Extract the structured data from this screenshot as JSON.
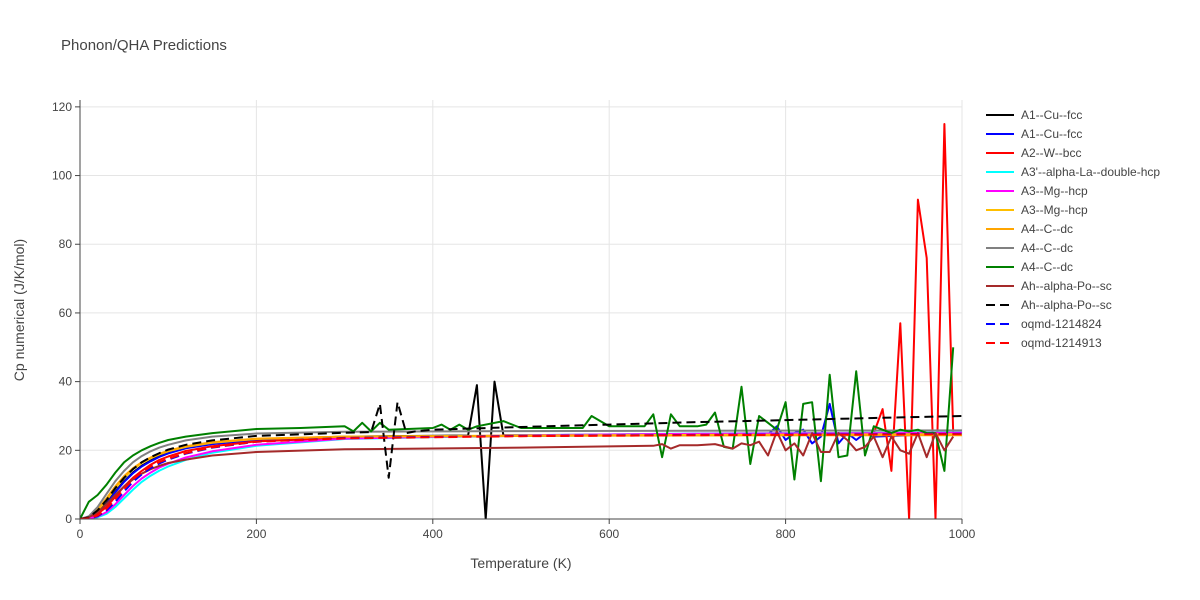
{
  "chart_data": {
    "type": "line",
    "title": "Phonon/QHA Predictions",
    "xlabel": "Temperature (K)",
    "ylabel": "Cp numerical (J/K/mol)",
    "xlim": [
      0,
      1000
    ],
    "ylim": [
      0,
      122
    ],
    "xticks": [
      0,
      200,
      400,
      600,
      800,
      1000
    ],
    "yticks": [
      0,
      20,
      40,
      60,
      80,
      100,
      120
    ],
    "grid": true,
    "legend_position": "right",
    "series": [
      {
        "name": "A1--Cu--fcc",
        "color": "#000000",
        "dash": "solid",
        "x": [
          0,
          10,
          20,
          30,
          40,
          50,
          60,
          70,
          80,
          90,
          100,
          120,
          150,
          200,
          300,
          440,
          450,
          460,
          470,
          480,
          490,
          1000
        ],
        "y": [
          0,
          0.5,
          2,
          4.5,
          8,
          11,
          13.5,
          15.5,
          17,
          18.3,
          19.3,
          20.8,
          22,
          23.2,
          24,
          24.3,
          39,
          0,
          40,
          24.4,
          24.4,
          25
        ]
      },
      {
        "name": "A1--Cu--fcc",
        "color": "#0000ff",
        "dash": "solid",
        "x": [
          0,
          10,
          20,
          30,
          40,
          50,
          60,
          70,
          80,
          90,
          100,
          120,
          150,
          200,
          300,
          500,
          700,
          780,
          790,
          800,
          810,
          820,
          830,
          840,
          850,
          860,
          870,
          880,
          890,
          900,
          1000
        ],
        "y": [
          0,
          0.4,
          1.8,
          4.3,
          7.8,
          10.8,
          13.3,
          15.3,
          16.8,
          18.1,
          19.1,
          20.6,
          21.8,
          23,
          23.8,
          24.2,
          24.5,
          24.6,
          27,
          23,
          25,
          26,
          22,
          24,
          33.5,
          22,
          25,
          23,
          25,
          24,
          25
        ]
      },
      {
        "name": "A2--W--bcc",
        "color": "#ff0000",
        "dash": "solid",
        "x": [
          0,
          10,
          20,
          30,
          40,
          50,
          60,
          70,
          80,
          90,
          100,
          120,
          150,
          200,
          300,
          500,
          700,
          900,
          910,
          920,
          930,
          940,
          950,
          960,
          970,
          980,
          990
        ],
        "y": [
          0,
          0.3,
          1.5,
          3.5,
          6.5,
          9.5,
          12,
          14,
          15.8,
          17.2,
          18.2,
          19.8,
          21.2,
          22.6,
          23.6,
          24.2,
          24.6,
          25,
          32,
          14,
          57,
          0,
          93,
          76,
          0,
          115,
          25
        ]
      },
      {
        "name": "A3'--alpha-La--double-hcp",
        "color": "#00ffff",
        "dash": "solid",
        "x": [
          0,
          10,
          20,
          30,
          40,
          50,
          60,
          70,
          80,
          90,
          100,
          120,
          150,
          200,
          300,
          500,
          700,
          1000
        ],
        "y": [
          0,
          0.1,
          0.5,
          1.5,
          3.5,
          6,
          8.5,
          10.8,
          12.6,
          14.1,
          15.3,
          17.2,
          19.3,
          21.3,
          23.3,
          24.4,
          24.9,
          25.2
        ]
      },
      {
        "name": "A3--Mg--hcp",
        "color": "#ff00ff",
        "dash": "solid",
        "x": [
          0,
          10,
          20,
          30,
          40,
          50,
          60,
          70,
          80,
          90,
          100,
          120,
          150,
          200,
          300,
          500,
          700,
          1000
        ],
        "y": [
          0,
          0.2,
          0.7,
          2,
          4.3,
          7,
          9.6,
          11.8,
          13.5,
          15,
          16.1,
          17.9,
          19.7,
          21.6,
          23.4,
          24.4,
          24.8,
          25.1
        ]
      },
      {
        "name": "A3--Mg--hcp",
        "color": "#ffbf00",
        "dash": "solid",
        "x": [
          0,
          10,
          20,
          30,
          40,
          50,
          60,
          70,
          80,
          90,
          100,
          120,
          150,
          200,
          300,
          500,
          700,
          1000
        ],
        "y": [
          0,
          0.5,
          2.5,
          5.5,
          9,
          12,
          14.5,
          16.3,
          17.7,
          18.8,
          19.7,
          21,
          22.2,
          23.3,
          24,
          24.3,
          24.5,
          24.7
        ]
      },
      {
        "name": "A4--C--dc",
        "color": "#ffa500",
        "dash": "solid",
        "x": [
          0,
          10,
          20,
          30,
          40,
          50,
          60,
          70,
          80,
          90,
          100,
          120,
          150,
          200,
          300,
          500,
          700,
          1000
        ],
        "y": [
          0,
          0.6,
          2.8,
          6,
          9.5,
          12.5,
          14.8,
          16.5,
          17.9,
          19,
          19.9,
          21.2,
          22.4,
          23.4,
          24,
          24.2,
          24.3,
          24.4
        ]
      },
      {
        "name": "A4--C--dc",
        "color": "#808080",
        "dash": "solid",
        "x": [
          0,
          10,
          20,
          30,
          40,
          50,
          60,
          70,
          80,
          90,
          100,
          120,
          150,
          200,
          300,
          500,
          700,
          1000
        ],
        "y": [
          0,
          0.8,
          3.5,
          7.3,
          11,
          14,
          16.5,
          18.3,
          19.7,
          20.8,
          21.6,
          22.9,
          24,
          24.9,
          25.4,
          25.6,
          25.7,
          25.8
        ]
      },
      {
        "name": "A4--C--dc",
        "color": "#008000",
        "dash": "solid",
        "x": [
          0,
          10,
          20,
          30,
          40,
          50,
          60,
          70,
          80,
          90,
          100,
          120,
          150,
          200,
          250,
          300,
          310,
          320,
          330,
          340,
          350,
          400,
          410,
          420,
          430,
          440,
          450,
          480,
          500,
          570,
          580,
          600,
          640,
          650,
          660,
          670,
          680,
          700,
          710,
          720,
          730,
          740,
          750,
          760,
          770,
          780,
          790,
          800,
          810,
          820,
          830,
          840,
          850,
          860,
          870,
          880,
          890,
          900,
          910,
          920,
          930,
          940,
          950,
          960,
          970,
          980,
          990
        ],
        "y": [
          0,
          5,
          7,
          10,
          13.5,
          16.5,
          18.5,
          20,
          21.2,
          22.2,
          23,
          24,
          25,
          26.2,
          26.5,
          27,
          25.5,
          28,
          25.5,
          28,
          26,
          26.5,
          27.5,
          26,
          27.5,
          26,
          27,
          28.5,
          26.5,
          26.5,
          30,
          27,
          27,
          30.5,
          18,
          30.5,
          27,
          27,
          27.5,
          31,
          21,
          20.5,
          38.5,
          16,
          30,
          28,
          26,
          34,
          11.5,
          33.5,
          34,
          11,
          42,
          18,
          18.5,
          43,
          18.5,
          27,
          26,
          25,
          26,
          25.5,
          26,
          25,
          25,
          14,
          50
        ]
      },
      {
        "name": "Ah--alpha-Po--sc",
        "color": "#a52a2a",
        "dash": "solid",
        "x": [
          0,
          10,
          20,
          30,
          40,
          50,
          60,
          70,
          80,
          90,
          100,
          120,
          150,
          200,
          300,
          500,
          650,
          660,
          670,
          680,
          700,
          720,
          740,
          750,
          760,
          770,
          780,
          790,
          800,
          810,
          820,
          830,
          840,
          850,
          860,
          870,
          880,
          890,
          900,
          910,
          920,
          930,
          940,
          950,
          960,
          970,
          980,
          990
        ],
        "y": [
          0,
          0.5,
          2,
          4.3,
          7,
          9.5,
          11.5,
          13.2,
          14.5,
          15.5,
          16.3,
          17.3,
          18.5,
          19.5,
          20.3,
          20.8,
          21.3,
          21.8,
          20.5,
          21.5,
          21.5,
          21.8,
          20.5,
          22,
          21.5,
          22.5,
          18.5,
          25.5,
          20,
          22,
          18.5,
          25,
          19.5,
          19.5,
          25,
          23,
          20,
          21,
          24,
          18,
          24,
          20,
          19,
          25,
          18,
          25,
          20,
          24
        ]
      },
      {
        "name": "Ah--alpha-Po--sc",
        "color": "#000000",
        "dash": "dash",
        "x": [
          0,
          10,
          20,
          30,
          40,
          50,
          60,
          70,
          80,
          90,
          100,
          120,
          150,
          200,
          300,
          330,
          340,
          350,
          360,
          370,
          380,
          400,
          500,
          600,
          700,
          800,
          900,
          1000
        ],
        "y": [
          0,
          0.5,
          2.5,
          5.5,
          9,
          12,
          14.5,
          16.5,
          18,
          19.2,
          20.2,
          21.6,
          22.9,
          24.2,
          25.1,
          25.3,
          33.5,
          12,
          34,
          25,
          25.5,
          26,
          26.8,
          27.5,
          28.2,
          28.8,
          29.4,
          30
        ]
      },
      {
        "name": "oqmd-1214824",
        "color": "#0000ff",
        "dash": "dash",
        "x": [
          0,
          10,
          20,
          30,
          40,
          50,
          60,
          70,
          80,
          90,
          100,
          120,
          150,
          200,
          300,
          500,
          700,
          1000
        ],
        "y": [
          0,
          0.1,
          0.8,
          2.5,
          5,
          8,
          10.8,
          13,
          14.8,
          16.2,
          17.3,
          19,
          20.8,
          22.5,
          23.6,
          24.2,
          24.5,
          24.8
        ]
      },
      {
        "name": "oqmd-1214913",
        "color": "#ff0000",
        "dash": "dash",
        "x": [
          0,
          10,
          20,
          30,
          40,
          50,
          60,
          70,
          80,
          90,
          100,
          120,
          150,
          200,
          300,
          500,
          700,
          1000
        ],
        "y": [
          0,
          0.2,
          1,
          3,
          5.8,
          8.8,
          11.5,
          13.6,
          15.3,
          16.6,
          17.6,
          19.2,
          20.9,
          22.5,
          23.5,
          24.1,
          24.4,
          24.7
        ]
      }
    ]
  }
}
